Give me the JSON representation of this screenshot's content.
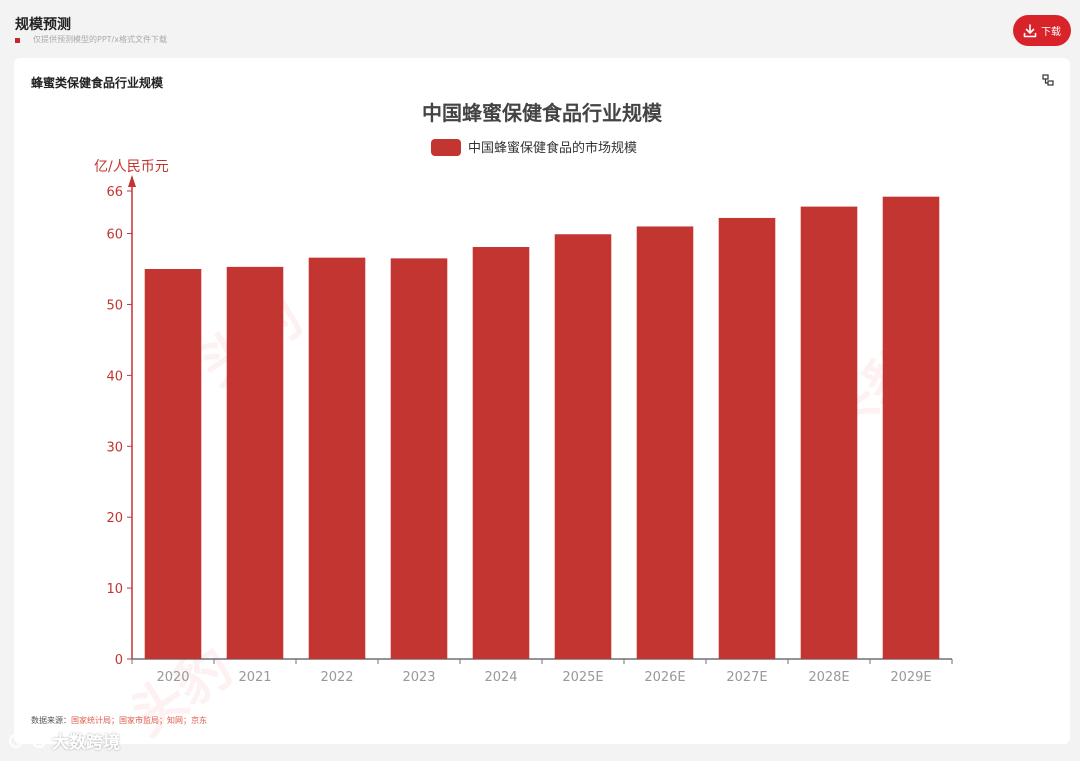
{
  "header": {
    "title": "规模预测",
    "subtitle": "仅提供预测模型的PPT/x格式文件下载",
    "download_label": "下载"
  },
  "card": {
    "title": "蜂蜜类保健食品行业规模"
  },
  "source": {
    "label": "数据来源：",
    "value": "国家统计局；国家市监局；知网；京东"
  },
  "watermarks": [
    "头豹",
    "头豹",
    "头豹"
  ],
  "brand": {
    "label": "大数跨境"
  },
  "colors": {
    "bar": "#c23531",
    "axis": "#c23531",
    "tick_text": "#999999",
    "accent": "#d9232a"
  },
  "chart_data": {
    "type": "bar",
    "title": "中国蜂蜜保健食品行业规模",
    "ylabel": "亿/人民币元",
    "ylim": [
      0,
      66
    ],
    "yticks": [
      0,
      10,
      20,
      30,
      40,
      50,
      60,
      66
    ],
    "categories": [
      "2020",
      "2021",
      "2022",
      "2023",
      "2024",
      "2025E",
      "2026E",
      "2027E",
      "2028E",
      "2029E"
    ],
    "series": [
      {
        "name": "中国蜂蜜保健食品的市场规模",
        "values": [
          55.0,
          55.3,
          56.6,
          56.5,
          58.1,
          59.9,
          61.0,
          62.2,
          63.8,
          65.2
        ]
      }
    ],
    "legend_position": "top-center",
    "grid": false
  }
}
